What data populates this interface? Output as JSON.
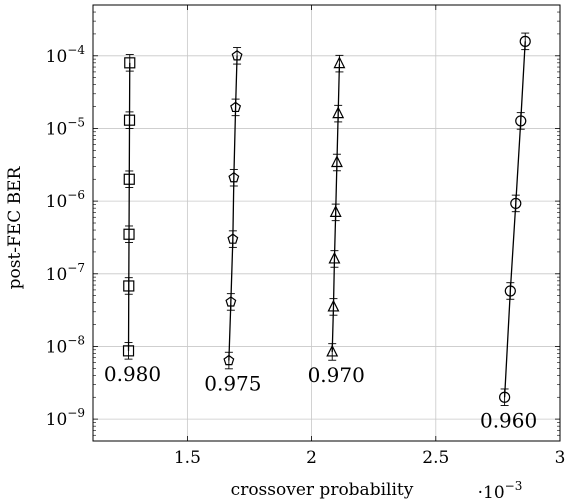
{
  "chart_data": {
    "type": "scatter",
    "xlabel": "crossover probability",
    "ylabel": "post-FEC BER",
    "x_scale_label": "·10",
    "x_scale_exponent": "−3",
    "xlim": [
      1.12,
      3.0
    ],
    "ylim": [
      5e-10,
      0.0005
    ],
    "y_scale": "log",
    "grid": true,
    "x_ticks": [
      {
        "value": 1.5,
        "label": "1.5"
      },
      {
        "value": 2.0,
        "label": "2"
      },
      {
        "value": 2.5,
        "label": "2.5"
      },
      {
        "value": 3.0,
        "label": "3"
      }
    ],
    "y_ticks": [
      {
        "value": 1e-09,
        "base": "10",
        "exp": "−9"
      },
      {
        "value": 1e-08,
        "base": "10",
        "exp": "−8"
      },
      {
        "value": 1e-07,
        "base": "10",
        "exp": "−7"
      },
      {
        "value": 1e-06,
        "base": "10",
        "exp": "−6"
      },
      {
        "value": 1e-05,
        "base": "10",
        "exp": "−5"
      },
      {
        "value": 0.0001,
        "base": "10",
        "exp": "−4"
      }
    ],
    "series": [
      {
        "name": "0.980",
        "marker": "square",
        "points": [
          {
            "x": 1.263,
            "y": 8.7e-09
          },
          {
            "x": 1.264,
            "y": 6.8e-08
          },
          {
            "x": 1.265,
            "y": 3.5e-07
          },
          {
            "x": 1.266,
            "y": 2e-06
          },
          {
            "x": 1.267,
            "y": 1.3e-05
          },
          {
            "x": 1.268,
            "y": 8e-05
          }
        ]
      },
      {
        "name": "0.975",
        "marker": "pentagon",
        "points": [
          {
            "x": 1.667,
            "y": 6.4e-09
          },
          {
            "x": 1.675,
            "y": 4.1e-08
          },
          {
            "x": 1.683,
            "y": 3e-07
          },
          {
            "x": 1.687,
            "y": 2.1e-06
          },
          {
            "x": 1.694,
            "y": 1.95e-05
          },
          {
            "x": 1.7,
            "y": 0.0001
          }
        ]
      },
      {
        "name": "0.970",
        "marker": "triangle",
        "points": [
          {
            "x": 2.083,
            "y": 8.4e-09
          },
          {
            "x": 2.088,
            "y": 3.5e-08
          },
          {
            "x": 2.092,
            "y": 1.6e-07
          },
          {
            "x": 2.097,
            "y": 7e-07
          },
          {
            "x": 2.102,
            "y": 3.4e-06
          },
          {
            "x": 2.107,
            "y": 1.6e-05
          },
          {
            "x": 2.112,
            "y": 7.8e-05
          }
        ]
      },
      {
        "name": "0.960",
        "marker": "circle",
        "points": [
          {
            "x": 2.777,
            "y": 2e-09
          },
          {
            "x": 2.8,
            "y": 5.8e-08
          },
          {
            "x": 2.822,
            "y": 9.3e-07
          },
          {
            "x": 2.842,
            "y": 1.27e-05
          },
          {
            "x": 2.86,
            "y": 0.000158
          }
        ]
      }
    ]
  }
}
